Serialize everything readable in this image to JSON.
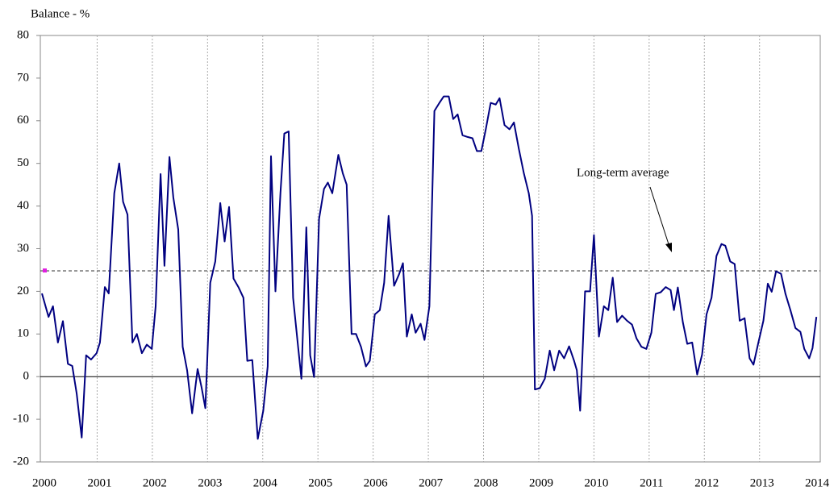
{
  "chart_data": {
    "type": "line",
    "y_label": "Balance - %",
    "annotation": "Long-term average",
    "average": 24.8,
    "color": "#000080",
    "x": [
      2000.0,
      2000.12,
      2000.2,
      2000.29,
      2000.38,
      2000.47,
      2000.55,
      2000.63,
      2000.72,
      2000.8,
      2000.89,
      2000.99,
      2001.05,
      2001.14,
      2001.21,
      2001.31,
      2001.4,
      2001.47,
      2001.55,
      2001.64,
      2001.72,
      2001.81,
      2001.9,
      2001.99,
      2002.06,
      2002.15,
      2002.22,
      2002.31,
      2002.38,
      2002.47,
      2002.55,
      2002.63,
      2002.72,
      2002.82,
      2002.89,
      2002.96,
      2003.05,
      2003.14,
      2003.23,
      2003.31,
      2003.39,
      2003.47,
      2003.56,
      2003.65,
      2003.72,
      2003.81,
      2003.91,
      2004.01,
      2004.09,
      2004.15,
      2004.23,
      2004.32,
      2004.39,
      2004.47,
      2004.55,
      2004.64,
      2004.7,
      2004.79,
      2004.86,
      2004.93,
      2005.02,
      2005.11,
      2005.18,
      2005.26,
      2005.37,
      2005.45,
      2005.52,
      2005.61,
      2005.69,
      2005.78,
      2005.87,
      2005.94,
      2006.03,
      2006.12,
      2006.2,
      2006.28,
      2006.38,
      2006.47,
      2006.54,
      2006.61,
      2006.7,
      2006.77,
      2006.86,
      2006.93,
      2007.02,
      2007.11,
      2007.2,
      2007.28,
      2007.37,
      2007.45,
      2007.53,
      2007.62,
      2007.71,
      2007.8,
      2007.88,
      2007.96,
      2008.04,
      2008.13,
      2008.22,
      2008.29,
      2008.38,
      2008.47,
      2008.55,
      2008.64,
      2008.73,
      2008.82,
      2008.88,
      2008.93,
      2009.02,
      2009.11,
      2009.2,
      2009.28,
      2009.37,
      2009.46,
      2009.55,
      2009.64,
      2009.69,
      2009.75,
      2009.84,
      2009.93,
      2010.0,
      2010.09,
      2010.18,
      2010.26,
      2010.34,
      2010.42,
      2010.51,
      2010.6,
      2010.69,
      2010.77,
      2010.86,
      2010.95,
      2011.04,
      2011.12,
      2011.21,
      2011.3,
      2011.39,
      2011.45,
      2011.52,
      2011.61,
      2011.69,
      2011.78,
      2011.87,
      2011.96,
      2012.04,
      2012.13,
      2012.22,
      2012.31,
      2012.38,
      2012.47,
      2012.55,
      2012.64,
      2012.73,
      2012.82,
      2012.89,
      2012.98,
      2013.07,
      2013.15,
      2013.22,
      2013.3,
      2013.39,
      2013.47,
      2013.56,
      2013.65,
      2013.74,
      2013.81,
      2013.9,
      2013.96,
      2014.03
    ],
    "values": [
      19.5,
      14,
      16.5,
      8,
      13,
      3,
      2.5,
      -4,
      -14.3,
      5,
      4,
      5.5,
      8,
      21,
      19.5,
      43,
      50,
      41,
      38,
      8,
      10,
      5.5,
      7.5,
      6.5,
      16.5,
      47.5,
      26,
      51.5,
      42,
      34.5,
      7,
      1.5,
      -8.6,
      1.8,
      -2.4,
      -7.4,
      22,
      27,
      40.7,
      31.7,
      39.8,
      23,
      21,
      18.5,
      3.7,
      3.9,
      -14.6,
      -8,
      2.4,
      51.7,
      20,
      43,
      57,
      57.5,
      18.5,
      7,
      -0.5,
      35,
      5,
      -0.1,
      37,
      44,
      45.5,
      43,
      52,
      47.7,
      45,
      10,
      10,
      7,
      2.4,
      3.7,
      14.6,
      15.6,
      22,
      37.7,
      21.3,
      24,
      26.6,
      9.4,
      14.6,
      10.3,
      12.4,
      8.6,
      16.5,
      62.3,
      64.2,
      65.7,
      65.7,
      60.4,
      61.5,
      56.6,
      56.2,
      55.9,
      52.9,
      52.9,
      58,
      64.2,
      63.8,
      65.3,
      59,
      58,
      59.6,
      53.4,
      47.7,
      43,
      37.7,
      -3,
      -2.7,
      -0.5,
      6.1,
      1.5,
      6.1,
      4.3,
      7.1,
      3.7,
      1.5,
      -8,
      20,
      20,
      33.2,
      9.4,
      16.5,
      15.6,
      23.2,
      12.8,
      14.3,
      13.1,
      12.2,
      9,
      7,
      6.5,
      10.3,
      19.4,
      19.8,
      21,
      20.3,
      15.6,
      20.9,
      12.8,
      7.7,
      8,
      0.5,
      5.2,
      14.6,
      18.5,
      28.3,
      31.1,
      30.7,
      27,
      26.4,
      13.1,
      13.7,
      4.3,
      2.8,
      8,
      13.1,
      21.8,
      19.9,
      24.7,
      24.1,
      19.4,
      15.6,
      11.4,
      10.5,
      6.5,
      4.3,
      6.7,
      14
    ],
    "xlim": [
      2000,
      2014.1
    ],
    "xticks": [
      2000,
      2001,
      2002,
      2003,
      2004,
      2005,
      2006,
      2007,
      2008,
      2009,
      2010,
      2011,
      2012,
      2013,
      2014
    ],
    "ylim": [
      -20,
      80
    ],
    "yticks": [
      -20,
      -10,
      0,
      10,
      20,
      30,
      40,
      50,
      60,
      70,
      80
    ],
    "grid": true
  }
}
